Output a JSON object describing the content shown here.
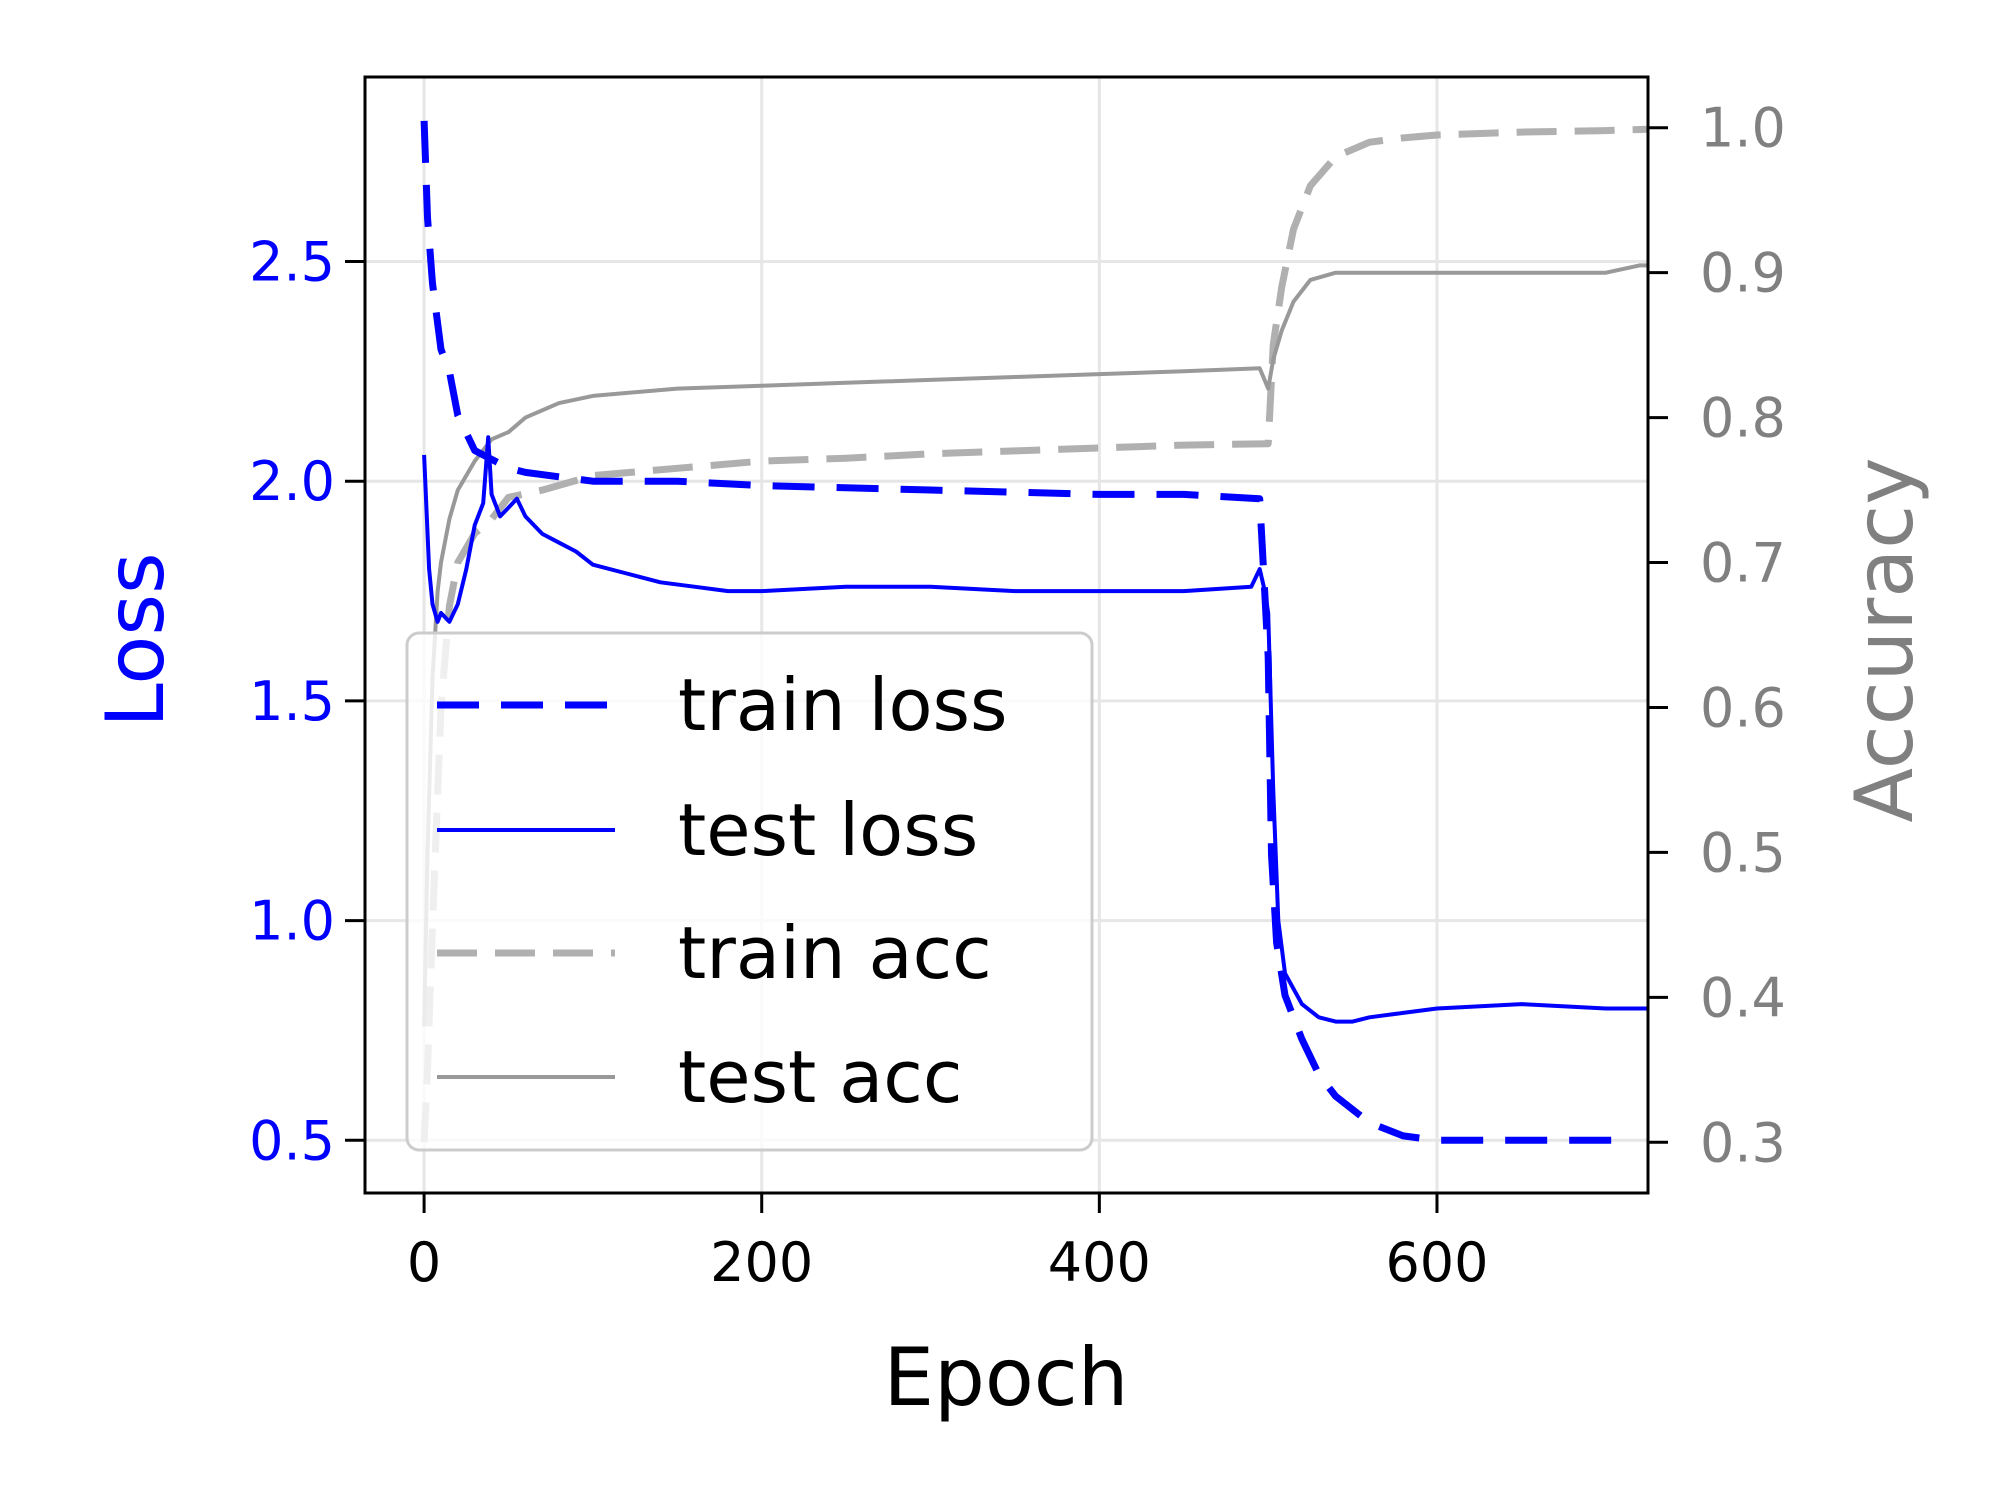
{
  "chart_data": {
    "type": "line",
    "title": "",
    "xlabel": "Epoch",
    "ylabel_left": "Loss",
    "ylabel_right": "Accuracy",
    "xlim": [
      -35,
      725
    ],
    "ylim_left": [
      0.38,
      2.92
    ],
    "ylim_right": [
      0.265,
      1.035
    ],
    "x_ticks": [
      0,
      200,
      400,
      600
    ],
    "y_ticks_left": [
      0.5,
      1.0,
      1.5,
      2.0,
      2.5
    ],
    "y_ticks_right": [
      0.3,
      0.4,
      0.5,
      0.6,
      0.7,
      0.8,
      0.9,
      1.0
    ],
    "x_tick_labels": [
      "0",
      "200",
      "400",
      "600"
    ],
    "y_tick_labels_left": [
      "0.5",
      "1.0",
      "1.5",
      "2.0",
      "2.5"
    ],
    "y_tick_labels_right": [
      "0.3",
      "0.4",
      "0.5",
      "0.6",
      "0.7",
      "0.8",
      "0.9",
      "1.0"
    ],
    "grid": true,
    "legend_position": "lower-left",
    "colors": {
      "loss_axis": "#0000ff",
      "acc_axis": "#808080",
      "train_loss": "#0000ff",
      "test_loss": "#0000ff",
      "train_acc": "#b0b0b0",
      "test_acc": "#999999"
    },
    "series": [
      {
        "name": "train loss",
        "axis": "left",
        "style": "dashed",
        "x": [
          0,
          2,
          5,
          10,
          15,
          20,
          30,
          40,
          50,
          60,
          80,
          100,
          150,
          200,
          300,
          400,
          450,
          495,
          500,
          502,
          505,
          510,
          520,
          530,
          540,
          560,
          580,
          600,
          650,
          700,
          705
        ],
        "y": [
          2.82,
          2.6,
          2.45,
          2.3,
          2.25,
          2.15,
          2.07,
          2.05,
          2.03,
          2.02,
          2.01,
          2.0,
          2.0,
          1.99,
          1.98,
          1.97,
          1.97,
          1.96,
          1.6,
          1.15,
          0.95,
          0.83,
          0.73,
          0.65,
          0.6,
          0.54,
          0.51,
          0.5,
          0.5,
          0.5,
          0.5
        ]
      },
      {
        "name": "test loss",
        "axis": "left",
        "style": "solid",
        "x": [
          0,
          3,
          5,
          8,
          10,
          15,
          20,
          25,
          30,
          35,
          38,
          40,
          45,
          50,
          55,
          60,
          70,
          80,
          90,
          100,
          120,
          140,
          160,
          180,
          200,
          250,
          300,
          350,
          400,
          450,
          490,
          495,
          498,
          500,
          503,
          506,
          510,
          520,
          530,
          540,
          550,
          560,
          580,
          600,
          650,
          700,
          725
        ],
        "y": [
          2.06,
          1.8,
          1.72,
          1.68,
          1.7,
          1.68,
          1.72,
          1.8,
          1.9,
          1.95,
          2.1,
          1.97,
          1.92,
          1.94,
          1.96,
          1.92,
          1.88,
          1.86,
          1.84,
          1.81,
          1.79,
          1.77,
          1.76,
          1.75,
          1.75,
          1.76,
          1.76,
          1.75,
          1.75,
          1.75,
          1.76,
          1.8,
          1.75,
          1.7,
          1.3,
          1.0,
          0.88,
          0.81,
          0.78,
          0.77,
          0.77,
          0.78,
          0.79,
          0.8,
          0.81,
          0.8,
          0.8
        ]
      },
      {
        "name": "train acc",
        "axis": "right",
        "style": "dashed",
        "x": [
          0,
          2,
          5,
          10,
          15,
          20,
          30,
          40,
          50,
          70,
          100,
          150,
          200,
          250,
          300,
          350,
          400,
          450,
          500,
          503,
          508,
          515,
          525,
          540,
          560,
          580,
          600,
          650,
          700,
          725
        ],
        "y": [
          0.3,
          0.35,
          0.45,
          0.6,
          0.67,
          0.7,
          0.72,
          0.73,
          0.745,
          0.75,
          0.76,
          0.765,
          0.77,
          0.772,
          0.775,
          0.777,
          0.779,
          0.781,
          0.782,
          0.85,
          0.89,
          0.93,
          0.96,
          0.98,
          0.99,
          0.993,
          0.995,
          0.997,
          0.998,
          0.999
        ]
      },
      {
        "name": "test acc",
        "axis": "right",
        "style": "solid",
        "x": [
          0,
          2,
          5,
          8,
          10,
          15,
          20,
          30,
          40,
          50,
          60,
          80,
          100,
          150,
          200,
          250,
          300,
          350,
          400,
          450,
          495,
          500,
          503,
          508,
          515,
          525,
          540,
          560,
          600,
          650,
          700,
          720,
          725
        ],
        "y": [
          0.38,
          0.5,
          0.62,
          0.68,
          0.7,
          0.73,
          0.75,
          0.77,
          0.785,
          0.79,
          0.8,
          0.81,
          0.815,
          0.82,
          0.822,
          0.824,
          0.826,
          0.828,
          0.83,
          0.832,
          0.834,
          0.82,
          0.84,
          0.86,
          0.88,
          0.895,
          0.9,
          0.9,
          0.9,
          0.9,
          0.9,
          0.905,
          0.905
        ]
      }
    ]
  }
}
